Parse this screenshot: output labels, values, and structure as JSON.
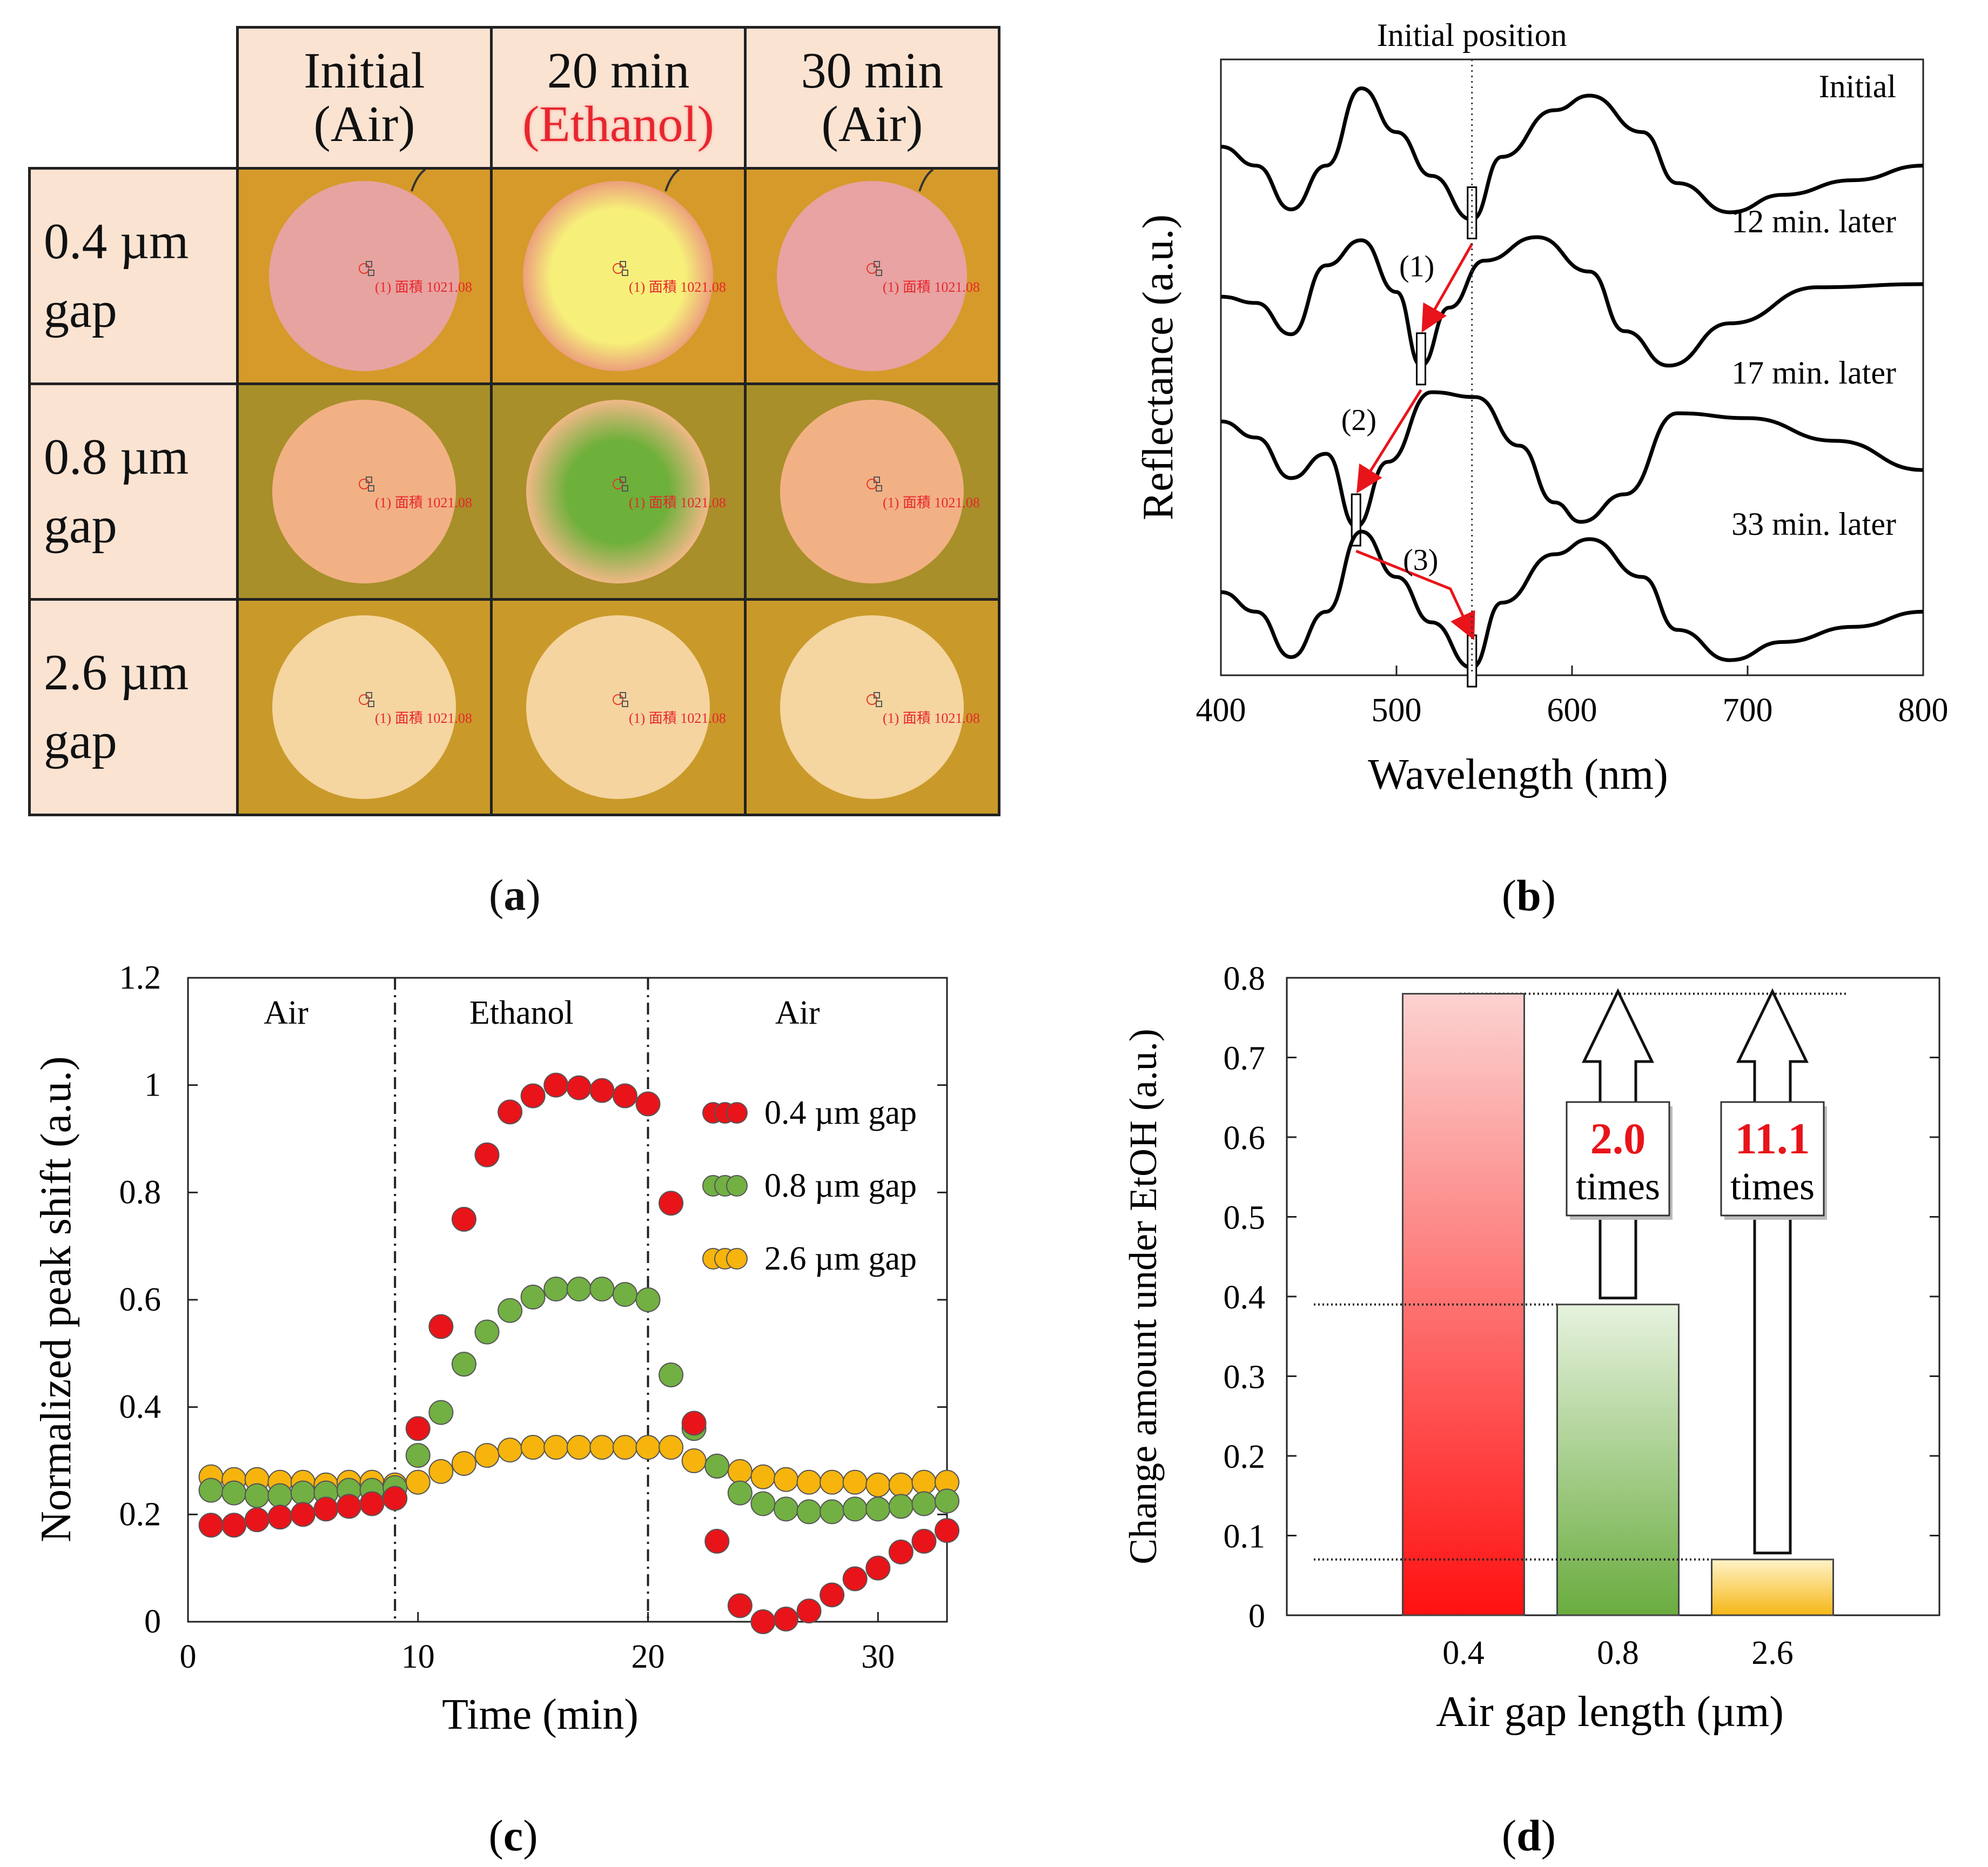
{
  "panel_a": {
    "col_headers": [
      {
        "line1": "Initial",
        "line2": "(Air)",
        "highlight": false
      },
      {
        "line1": "20 min",
        "line2": "(Ethanol)",
        "highlight": true
      },
      {
        "line1": "30 min",
        "line2": "(Air)",
        "highlight": false
      }
    ],
    "row_headers": [
      {
        "line1": "0.4 µm",
        "line2": "gap"
      },
      {
        "line1": "0.8 µm",
        "line2": "gap"
      },
      {
        "line1": "2.6 µm",
        "line2": "gap"
      }
    ],
    "annotation": "(1) 面積 1021.08",
    "caption": "a",
    "colors": {
      "background": "#d19a2c",
      "row1_background": "#d69a2a",
      "row2_background": "#a88f2a",
      "row3_background": "#c99a2a",
      "cells": [
        [
          "#e7a3a0",
          "#f2ea6a",
          "#e8a3a2"
        ],
        [
          "#f2b184",
          "#7fb645",
          "#f2b184"
        ],
        [
          "#f5d5a0",
          "#f5d4a0",
          "#f5d5a0"
        ]
      ]
    }
  },
  "chart_data": [
    {
      "id": "b",
      "type": "line",
      "xlabel": "Wavelength (nm)",
      "ylabel": "Reflectance (a.u.)",
      "xlim": [
        400,
        800
      ],
      "xticks": [
        400,
        500,
        600,
        700,
        800
      ],
      "reference_line_label": "Initial position",
      "reference_line_x": 543,
      "series": [
        {
          "name": "Initial",
          "min_x": 543,
          "points": [
            [
              400,
              0.55
            ],
            [
              420,
              0.42
            ],
            [
              440,
              0.12
            ],
            [
              460,
              0.42
            ],
            [
              480,
              0.95
            ],
            [
              500,
              0.65
            ],
            [
              520,
              0.35
            ],
            [
              543,
              0.05
            ],
            [
              560,
              0.48
            ],
            [
              590,
              0.8
            ],
            [
              610,
              0.9
            ],
            [
              640,
              0.65
            ],
            [
              660,
              0.3
            ],
            [
              690,
              0.1
            ],
            [
              720,
              0.22
            ],
            [
              760,
              0.32
            ],
            [
              800,
              0.42
            ]
          ]
        },
        {
          "name": "12 min. later",
          "min_x": 514,
          "points": [
            [
              400,
              0.52
            ],
            [
              420,
              0.48
            ],
            [
              440,
              0.28
            ],
            [
              460,
              0.72
            ],
            [
              480,
              0.88
            ],
            [
              500,
              0.55
            ],
            [
              514,
              0.08
            ],
            [
              530,
              0.45
            ],
            [
              550,
              0.75
            ],
            [
              580,
              0.9
            ],
            [
              610,
              0.68
            ],
            [
              630,
              0.3
            ],
            [
              655,
              0.08
            ],
            [
              690,
              0.35
            ],
            [
              740,
              0.58
            ],
            [
              800,
              0.6
            ]
          ]
        },
        {
          "name": "17 min. later",
          "min_x": 477,
          "points": [
            [
              400,
              0.7
            ],
            [
              420,
              0.6
            ],
            [
              440,
              0.35
            ],
            [
              460,
              0.5
            ],
            [
              477,
              0.05
            ],
            [
              495,
              0.45
            ],
            [
              520,
              0.88
            ],
            [
              545,
              0.85
            ],
            [
              570,
              0.55
            ],
            [
              590,
              0.2
            ],
            [
              605,
              0.08
            ],
            [
              630,
              0.25
            ],
            [
              660,
              0.75
            ],
            [
              700,
              0.72
            ],
            [
              750,
              0.58
            ],
            [
              800,
              0.4
            ]
          ]
        },
        {
          "name": "33 min. later",
          "min_x": 543,
          "points": [
            [
              400,
              0.55
            ],
            [
              420,
              0.42
            ],
            [
              440,
              0.12
            ],
            [
              460,
              0.42
            ],
            [
              480,
              0.95
            ],
            [
              500,
              0.65
            ],
            [
              520,
              0.35
            ],
            [
              543,
              0.05
            ],
            [
              560,
              0.48
            ],
            [
              590,
              0.8
            ],
            [
              610,
              0.9
            ],
            [
              640,
              0.65
            ],
            [
              660,
              0.3
            ],
            [
              690,
              0.1
            ],
            [
              720,
              0.22
            ],
            [
              760,
              0.32
            ],
            [
              800,
              0.42
            ]
          ]
        }
      ],
      "arrows": [
        {
          "label": "(1)",
          "from": "Initial",
          "to": "12 min. later"
        },
        {
          "label": "(2)",
          "from": "12 min. later",
          "to": "17 min. later"
        },
        {
          "label": "(3)",
          "from": "17 min. later",
          "to": "33 min. later"
        }
      ],
      "caption": "b"
    },
    {
      "id": "c",
      "type": "scatter",
      "xlabel": "Time (min)",
      "ylabel": "Normalized peak shift (a.u.)",
      "xlim": [
        0,
        33
      ],
      "ylim": [
        0,
        1.2
      ],
      "xticks": [
        0,
        10,
        20,
        30
      ],
      "yticks": [
        "0",
        "0.2",
        "0.4",
        "0.6",
        "0.8",
        "1",
        "1.2"
      ],
      "regions": [
        {
          "label": "Air",
          "from": 0,
          "to": 9
        },
        {
          "label": "Ethanol",
          "from": 9,
          "to": 20
        },
        {
          "label": "Air",
          "from": 20,
          "to": 33
        }
      ],
      "region_lines_x": [
        9,
        20
      ],
      "series": [
        {
          "name": "0.4 µm gap",
          "color": "#e8141a",
          "x": [
            1,
            2,
            3,
            4,
            5,
            6,
            7,
            8,
            9,
            10,
            11,
            12,
            13,
            14,
            15,
            16,
            17,
            18,
            19,
            20,
            21,
            22,
            23,
            24,
            25,
            26,
            27,
            28,
            29,
            30,
            31,
            32,
            33
          ],
          "y": [
            0.18,
            0.18,
            0.19,
            0.195,
            0.2,
            0.21,
            0.215,
            0.22,
            0.23,
            0.36,
            0.55,
            0.75,
            0.87,
            0.95,
            0.98,
            1.0,
            0.995,
            0.99,
            0.98,
            0.965,
            0.78,
            0.37,
            0.15,
            0.03,
            0.0,
            0.005,
            0.02,
            0.05,
            0.08,
            0.1,
            0.13,
            0.15,
            0.17
          ]
        },
        {
          "name": "0.8 µm gap",
          "color": "#72b043",
          "x": [
            1,
            2,
            3,
            4,
            5,
            6,
            7,
            8,
            9,
            10,
            11,
            12,
            13,
            14,
            15,
            16,
            17,
            18,
            19,
            20,
            21,
            22,
            23,
            24,
            25,
            26,
            27,
            28,
            29,
            30,
            31,
            32,
            33
          ],
          "y": [
            0.245,
            0.24,
            0.235,
            0.235,
            0.24,
            0.24,
            0.245,
            0.245,
            0.25,
            0.31,
            0.39,
            0.48,
            0.54,
            0.58,
            0.605,
            0.62,
            0.62,
            0.62,
            0.61,
            0.6,
            0.46,
            0.36,
            0.29,
            0.24,
            0.22,
            0.21,
            0.205,
            0.205,
            0.21,
            0.21,
            0.215,
            0.22,
            0.225
          ]
        },
        {
          "name": "2.6 µm gap",
          "color": "#f6b40d",
          "x": [
            1,
            2,
            3,
            4,
            5,
            6,
            7,
            8,
            9,
            10,
            11,
            12,
            13,
            14,
            15,
            16,
            17,
            18,
            19,
            20,
            21,
            22,
            23,
            24,
            25,
            26,
            27,
            28,
            29,
            30,
            31,
            32,
            33
          ],
          "y": [
            0.27,
            0.265,
            0.265,
            0.26,
            0.26,
            0.255,
            0.26,
            0.26,
            0.255,
            0.26,
            0.28,
            0.295,
            0.31,
            0.32,
            0.325,
            0.325,
            0.325,
            0.325,
            0.325,
            0.325,
            0.325,
            0.3,
            0.29,
            0.28,
            0.27,
            0.265,
            0.26,
            0.26,
            0.26,
            0.255,
            0.255,
            0.26,
            0.26
          ]
        }
      ],
      "caption": "c"
    },
    {
      "id": "d",
      "type": "bar",
      "xlabel": "Air gap length (µm)",
      "ylabel": "Change amount under EtOH (a.u.)",
      "categories": [
        "0.4",
        "0.8",
        "2.6"
      ],
      "values": [
        0.78,
        0.39,
        0.07
      ],
      "ylim": [
        0,
        0.8
      ],
      "yticks": [
        "0",
        "0.1",
        "0.2",
        "0.3",
        "0.4",
        "0.5",
        "0.6",
        "0.7",
        "0.8"
      ],
      "bar_colors": [
        [
          "#fbd2d0",
          "#ff1111"
        ],
        [
          "#e6f2de",
          "#6aac3f"
        ],
        [
          "#fff3c8",
          "#f6b716"
        ]
      ],
      "ratios": [
        {
          "value": "2.0",
          "unit": "times"
        },
        {
          "value": "11.1",
          "unit": "times"
        }
      ],
      "caption": "d"
    }
  ]
}
